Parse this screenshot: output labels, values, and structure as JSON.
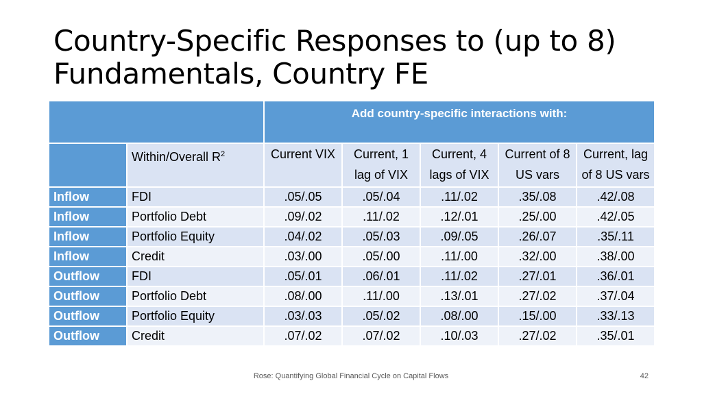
{
  "slide": {
    "title_line1": "Country-Specific Responses to (up to 8)",
    "title_line2": "Fundamentals, Country FE"
  },
  "table": {
    "group_header": "Add country-specific interactions with:",
    "stat_header": "Within/Overall R",
    "stat_header_sup": "2",
    "columns": [
      "Current VIX",
      "Current, 1 lag of VIX",
      "Current, 4 lags of VIX",
      "Current of 8 US vars",
      "Current, lag of 8 US vars"
    ],
    "rows": [
      {
        "direction": "Inflow",
        "flow": "FDI",
        "values": [
          ".05/.05",
          ".05/.04",
          ".11/.02",
          ".35/.08",
          ".42/.08"
        ]
      },
      {
        "direction": "Inflow",
        "flow": "Portfolio Debt",
        "values": [
          ".09/.02",
          ".11/.02",
          ".12/.01",
          ".25/.00",
          ".42/.05"
        ]
      },
      {
        "direction": "Inflow",
        "flow": "Portfolio Equity",
        "values": [
          ".04/.02",
          ".05/.03",
          ".09/.05",
          ".26/.07",
          ".35/.11"
        ]
      },
      {
        "direction": "Inflow",
        "flow": "Credit",
        "values": [
          ".03/.00",
          ".05/.00",
          ".11/.00",
          ".32/.00",
          ".38/.00"
        ]
      },
      {
        "direction": "Outflow",
        "flow": "FDI",
        "values": [
          ".05/.01",
          ".06/.01",
          ".11/.02",
          ".27/.01",
          ".36/.01"
        ]
      },
      {
        "direction": "Outflow",
        "flow": "Portfolio Debt",
        "values": [
          ".08/.00",
          ".11/.00",
          ".13/.01",
          ".27/.02",
          ".37/.04"
        ]
      },
      {
        "direction": "Outflow",
        "flow": "Portfolio Equity",
        "values": [
          ".03/.03",
          ".05/.02",
          ".08/.00",
          ".15/.00",
          ".33/.13"
        ]
      },
      {
        "direction": "Outflow",
        "flow": "Credit",
        "values": [
          ".07/.02",
          ".07/.02",
          ".10/.03",
          ".27/.02",
          ".35/.01"
        ]
      }
    ]
  },
  "footer": {
    "citation": "Rose: Quantifying Global Financial Cycle on Capital Flows",
    "page_number": "42"
  },
  "colors": {
    "header_blue": "#5b9bd5",
    "row_light_a": "#dae3f3",
    "row_light_b": "#eef2f9",
    "highlight_red": "#e8292c"
  }
}
